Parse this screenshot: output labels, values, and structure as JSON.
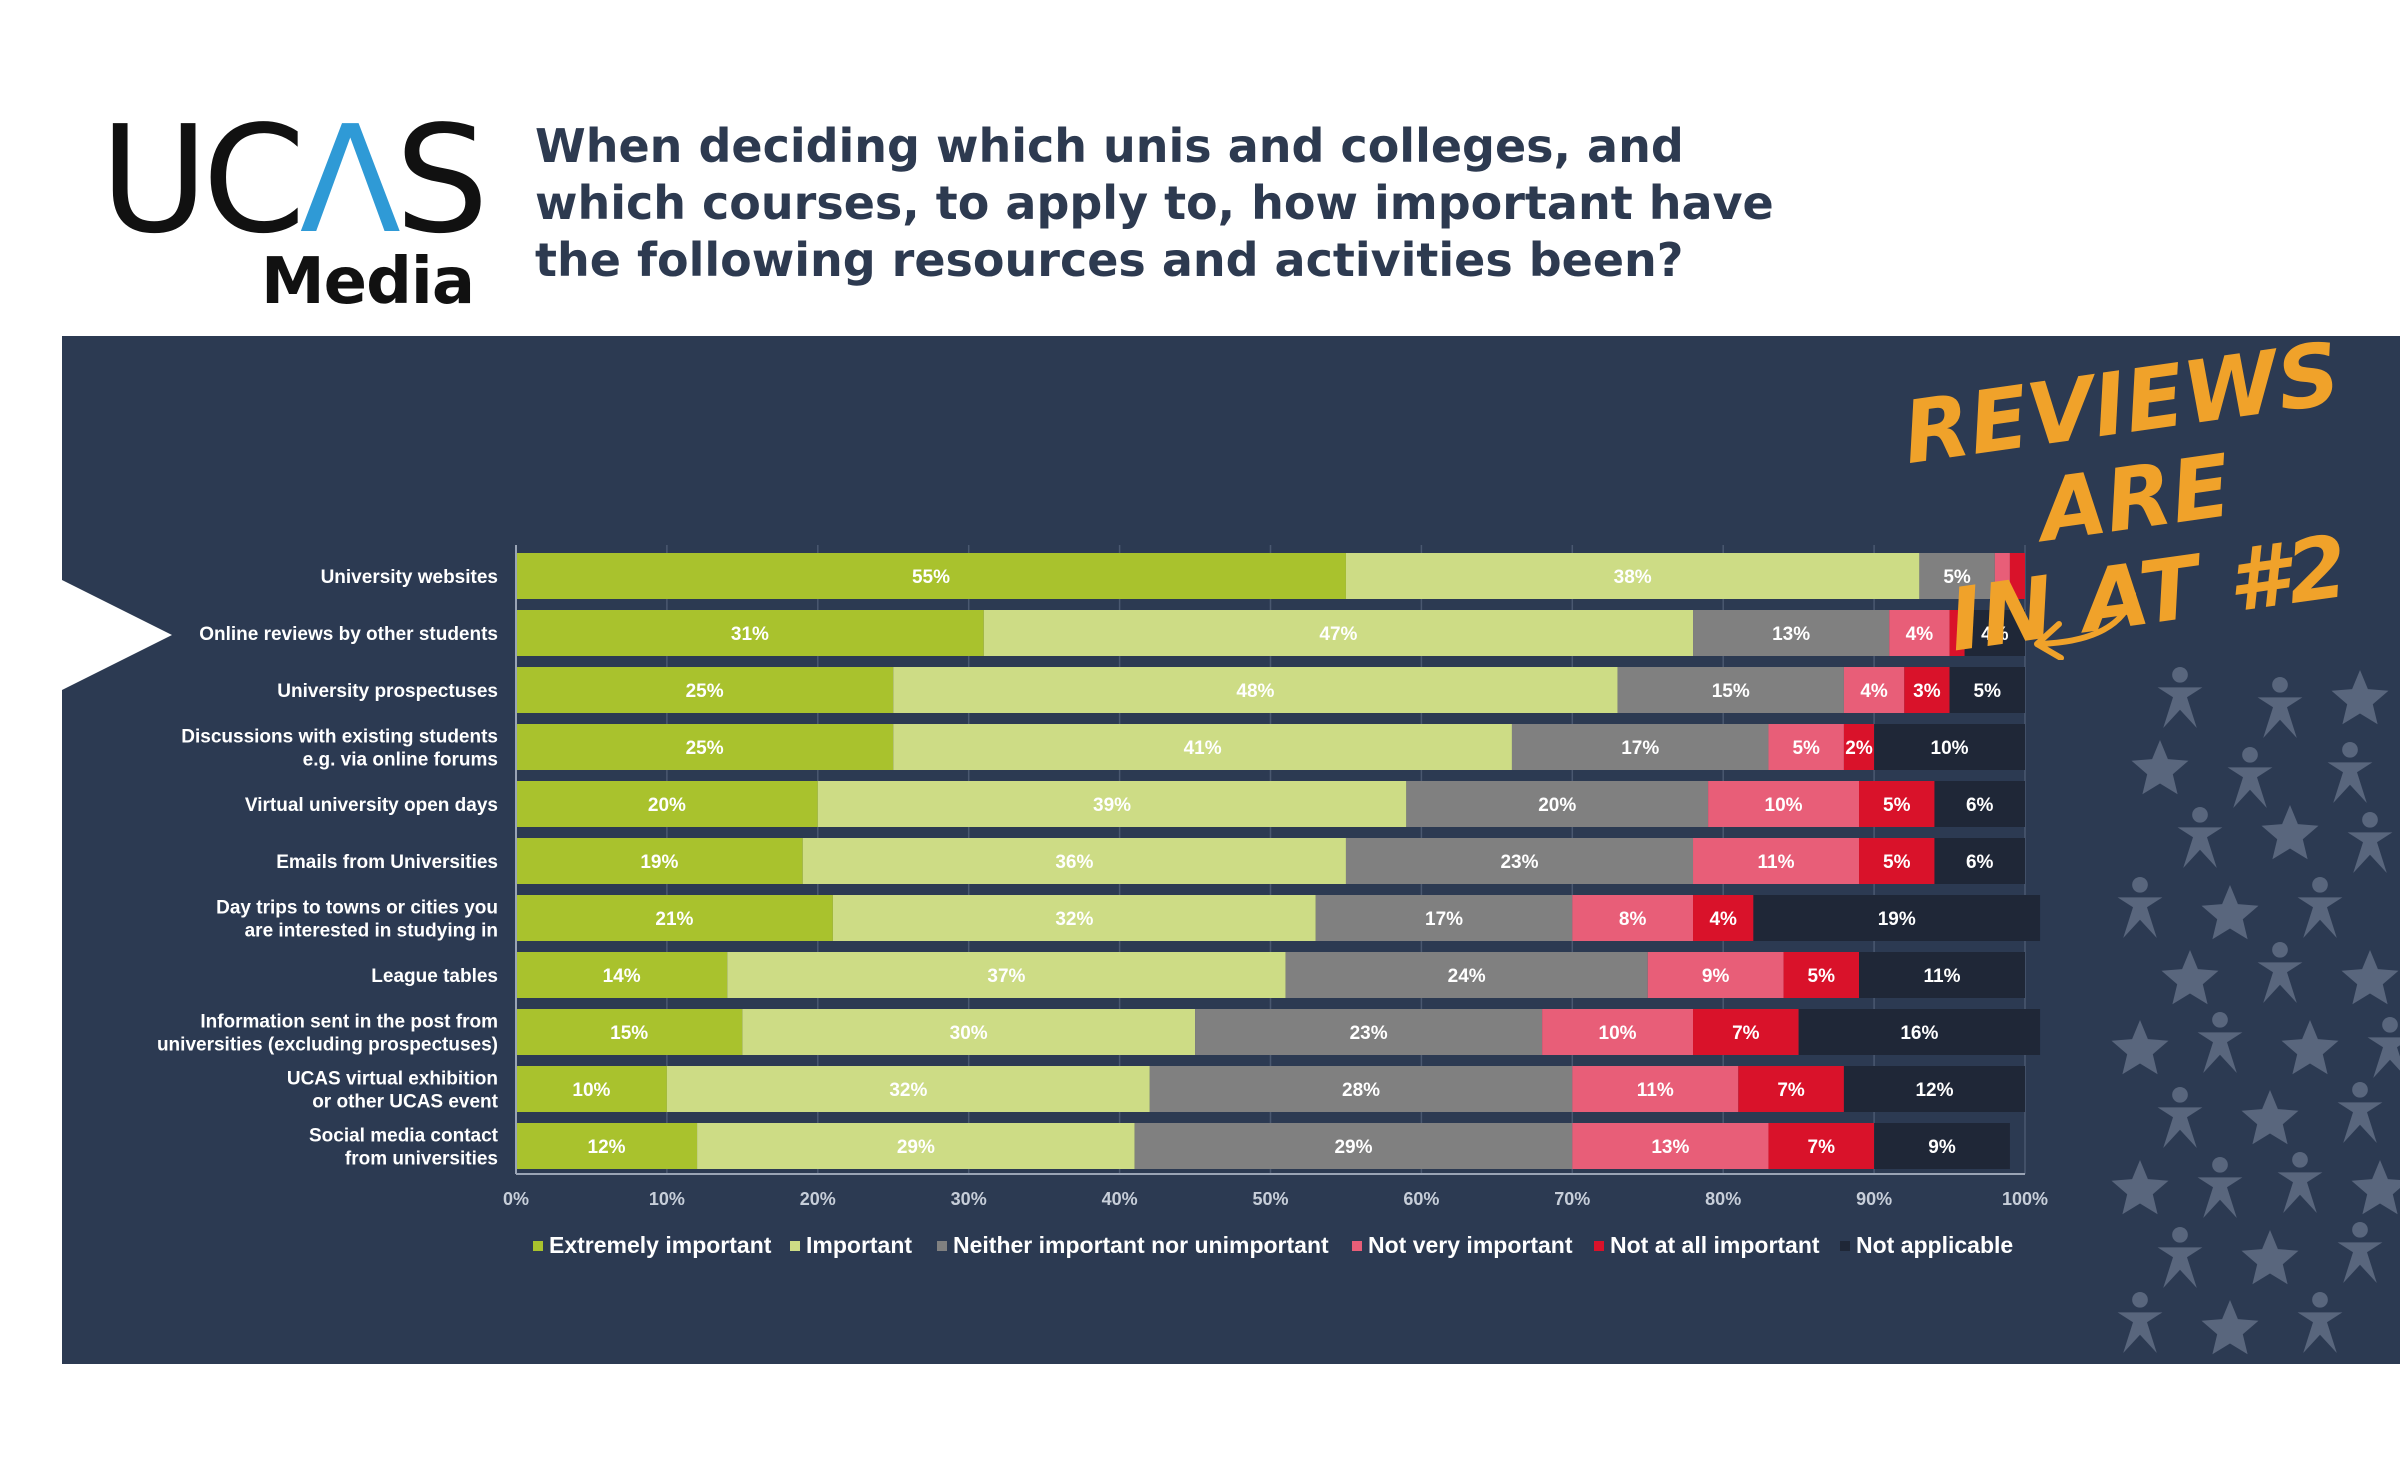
{
  "logo": {
    "ucas": "UCAS",
    "media": "Media"
  },
  "title": "When deciding which unis and colleges, and which courses, to apply to, how important have the following resources and activities been?",
  "callout": {
    "line1": "REVIEWS ARE",
    "line2": "IN AT #2"
  },
  "colors": {
    "panel": "#2c3a52",
    "extremely_important": "#a9c22d",
    "important": "#cddc85",
    "neither": "#808080",
    "not_very": "#e85e78",
    "not_at_all": "#d9122a",
    "not_applicable": "#1f2737",
    "accent": "#f0a22a"
  },
  "chart_data": {
    "type": "bar",
    "orientation": "horizontal",
    "stacked": true,
    "categories": [
      "University websites",
      "Online reviews by other students",
      "University prospectuses",
      "Discussions with existing students e.g. via online forums",
      "Virtual university open days",
      "Emails from Universities",
      "Day trips to towns or cities you are interested in studying in",
      "League tables",
      "Information sent in the post from universities (excluding prospectuses)",
      "UCAS virtual exhibition or other UCAS event",
      "Social media contact from universities"
    ],
    "category_lines": [
      [
        "University websites"
      ],
      [
        "Online reviews by other students"
      ],
      [
        "University prospectuses"
      ],
      [
        "Discussions with existing students",
        "e.g. via online forums"
      ],
      [
        "Virtual university open days"
      ],
      [
        "Emails from Universities"
      ],
      [
        "Day trips to towns or cities you",
        "are interested in studying in"
      ],
      [
        "League tables"
      ],
      [
        "Information sent in the post from",
        "universities (excluding prospectuses)"
      ],
      [
        "UCAS virtual exhibition",
        "or other UCAS event"
      ],
      [
        "Social media contact",
        "from universities"
      ]
    ],
    "series": [
      {
        "name": "Extremely important",
        "color": "#a9c22d",
        "values": [
          55,
          31,
          25,
          25,
          20,
          19,
          21,
          14,
          15,
          10,
          12
        ]
      },
      {
        "name": "Important",
        "color": "#cddc85",
        "values": [
          38,
          47,
          48,
          41,
          39,
          36,
          32,
          37,
          30,
          32,
          29
        ]
      },
      {
        "name": "Neither important nor unimportant",
        "color": "#808080",
        "values": [
          5,
          13,
          15,
          17,
          20,
          23,
          17,
          24,
          23,
          28,
          29
        ]
      },
      {
        "name": "Not very important",
        "color": "#e85e78",
        "values": [
          1,
          4,
          4,
          5,
          10,
          11,
          8,
          9,
          10,
          11,
          13
        ]
      },
      {
        "name": "Not at all important",
        "color": "#d9122a",
        "values": [
          1,
          1,
          3,
          2,
          5,
          5,
          4,
          5,
          7,
          7,
          7
        ]
      },
      {
        "name": "Not applicable",
        "color": "#1f2737",
        "values": [
          0,
          4,
          5,
          10,
          6,
          6,
          19,
          11,
          16,
          12,
          9
        ]
      }
    ],
    "data_labels": [
      [
        "55%",
        "38%",
        "5%",
        "",
        "",
        ""
      ],
      [
        "31%",
        "47%",
        "13%",
        "4%",
        "",
        "4%"
      ],
      [
        "25%",
        "48%",
        "15%",
        "4%",
        "3%",
        "5%"
      ],
      [
        "25%",
        "41%",
        "17%",
        "5%",
        "2%",
        "10%"
      ],
      [
        "20%",
        "39%",
        "20%",
        "10%",
        "5%",
        "6%"
      ],
      [
        "19%",
        "36%",
        "23%",
        "11%",
        "5%",
        "6%"
      ],
      [
        "21%",
        "32%",
        "17%",
        "8%",
        "4%",
        "19%"
      ],
      [
        "14%",
        "37%",
        "24%",
        "9%",
        "5%",
        "11%"
      ],
      [
        "15%",
        "30%",
        "23%",
        "10%",
        "7%",
        "16%"
      ],
      [
        "10%",
        "32%",
        "28%",
        "11%",
        "7%",
        "12%"
      ],
      [
        "12%",
        "29%",
        "29%",
        "13%",
        "7%",
        "9%"
      ]
    ],
    "x_ticks": [
      "0%",
      "10%",
      "20%",
      "30%",
      "40%",
      "50%",
      "60%",
      "70%",
      "80%",
      "90%",
      "100%"
    ],
    "xlim": [
      0,
      100
    ],
    "highlighted_category": "Online reviews by other students",
    "grid": true,
    "legend_position": "bottom"
  }
}
